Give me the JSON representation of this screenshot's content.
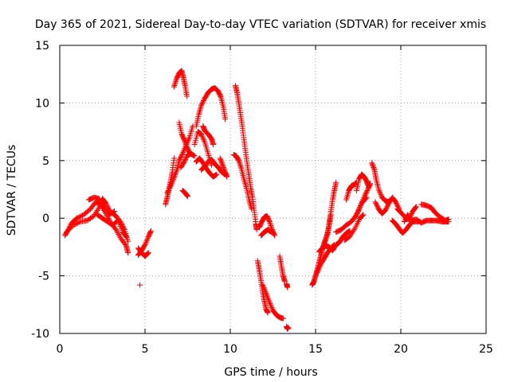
{
  "chart_data": {
    "type": "scatter",
    "title": "Day 365 of 2021, Sidereal Day-to-day VTEC variation (SDTVAR) for receiver xmis",
    "xlabel": "GPS time / hours",
    "ylabel": "SDTVAR / TECUs",
    "xlim": [
      0,
      25
    ],
    "ylim": [
      -10,
      15
    ],
    "xticks": [
      0,
      5,
      10,
      15,
      20,
      25
    ],
    "yticks": [
      -10,
      -5,
      0,
      5,
      10,
      15
    ],
    "xtick_labels": [
      "0",
      "5",
      "10",
      "15",
      "20",
      "25"
    ],
    "ytick_labels": [
      "-10",
      "-5",
      "0",
      "5",
      "10",
      "15"
    ],
    "grid": true,
    "marker": "+",
    "color": "#ff0000",
    "tracks": [
      [
        [
          0.3,
          -1.5
        ],
        [
          0.5,
          -1.0
        ],
        [
          0.7,
          -0.4
        ],
        [
          1.0,
          0.0
        ],
        [
          1.4,
          0.3
        ],
        [
          1.8,
          0.8
        ],
        [
          2.1,
          1.4
        ],
        [
          2.4,
          1.2
        ],
        [
          2.7,
          0.4
        ],
        [
          3.0,
          -0.4
        ],
        [
          3.3,
          -1.0
        ],
        [
          3.6,
          -1.8
        ],
        [
          3.9,
          -2.4
        ],
        [
          4.0,
          -3.0
        ]
      ],
      [
        [
          0.4,
          -1.2
        ],
        [
          0.8,
          -0.6
        ],
        [
          1.2,
          -0.3
        ],
        [
          1.6,
          -0.2
        ],
        [
          2.0,
          0.2
        ],
        [
          2.3,
          0.9
        ],
        [
          2.5,
          1.7
        ],
        [
          2.7,
          1.3
        ],
        [
          3.0,
          0.5
        ],
        [
          3.3,
          0.2
        ],
        [
          3.6,
          -0.4
        ],
        [
          3.8,
          -1.0
        ],
        [
          4.0,
          -2.0
        ]
      ],
      [
        [
          2.2,
          0.3
        ],
        [
          2.5,
          0.0
        ],
        [
          2.8,
          -0.3
        ],
        [
          3.1,
          -0.6
        ],
        [
          3.4,
          -0.2
        ],
        [
          3.7,
          -1.2
        ],
        [
          3.9,
          -1.6
        ]
      ],
      [
        [
          1.7,
          1.6
        ],
        [
          2.0,
          1.8
        ],
        [
          2.3,
          1.7
        ],
        [
          2.6,
          1.0
        ],
        [
          2.9,
          0.3
        ],
        [
          3.2,
          0.6
        ]
      ],
      [
        [
          4.6,
          -3.2
        ],
        [
          4.8,
          -2.8
        ],
        [
          5.0,
          -2.3
        ],
        [
          5.2,
          -1.6
        ],
        [
          5.35,
          -1.1
        ]
      ],
      [
        [
          4.6,
          -2.6
        ],
        [
          4.8,
          -3.0
        ],
        [
          5.0,
          -3.3
        ],
        [
          5.2,
          -3.0
        ]
      ],
      [
        [
          4.7,
          -5.8
        ]
      ],
      [
        [
          6.2,
          1.2
        ],
        [
          6.3,
          1.8
        ],
        [
          6.4,
          2.5
        ],
        [
          6.5,
          3.2
        ],
        [
          6.6,
          4.0
        ],
        [
          6.7,
          5.2
        ]
      ],
      [
        [
          6.3,
          2.2
        ],
        [
          6.5,
          2.8
        ],
        [
          6.7,
          3.5
        ],
        [
          6.9,
          4.3
        ],
        [
          7.0,
          5.0
        ],
        [
          7.2,
          5.6
        ],
        [
          7.4,
          6.3
        ],
        [
          7.6,
          7.0
        ],
        [
          7.8,
          8.0
        ]
      ],
      [
        [
          6.7,
          11.4
        ],
        [
          6.85,
          12.1
        ],
        [
          7.0,
          12.6
        ],
        [
          7.15,
          12.8
        ],
        [
          7.25,
          12.2
        ],
        [
          7.35,
          11.5
        ],
        [
          7.45,
          10.6
        ]
      ],
      [
        [
          7.0,
          8.3
        ],
        [
          7.15,
          7.3
        ],
        [
          7.3,
          6.8
        ],
        [
          7.45,
          6.2
        ],
        [
          7.6,
          5.7
        ]
      ],
      [
        [
          7.2,
          2.4
        ],
        [
          7.35,
          2.2
        ],
        [
          7.5,
          1.9
        ]
      ],
      [
        [
          7.1,
          4.4
        ],
        [
          7.3,
          4.9
        ],
        [
          7.5,
          5.5
        ],
        [
          7.7,
          5.6
        ],
        [
          7.9,
          5.4
        ]
      ],
      [
        [
          7.9,
          6.4
        ],
        [
          8.1,
          7.5
        ],
        [
          8.3,
          7.3
        ],
        [
          8.5,
          6.6
        ],
        [
          8.7,
          5.6
        ],
        [
          8.9,
          4.6
        ]
      ],
      [
        [
          8.0,
          4.9
        ],
        [
          8.2,
          5.2
        ],
        [
          8.4,
          4.8
        ],
        [
          8.6,
          4.3
        ],
        [
          8.8,
          3.9
        ],
        [
          9.0,
          3.6
        ],
        [
          9.2,
          3.8
        ]
      ],
      [
        [
          8.3,
          4.2
        ],
        [
          8.5,
          4.5
        ],
        [
          8.7,
          4.9
        ],
        [
          8.9,
          5.1
        ],
        [
          9.1,
          4.7
        ],
        [
          9.3,
          4.4
        ],
        [
          9.5,
          4.0
        ],
        [
          9.7,
          3.8
        ]
      ],
      [
        [
          8.0,
          8.0
        ],
        [
          8.15,
          9.0
        ],
        [
          8.3,
          9.8
        ],
        [
          8.5,
          10.4
        ],
        [
          8.7,
          10.9
        ],
        [
          8.9,
          11.2
        ],
        [
          9.1,
          11.3
        ],
        [
          9.3,
          11.0
        ],
        [
          9.45,
          10.5
        ],
        [
          9.6,
          9.6
        ],
        [
          9.7,
          8.6
        ]
      ],
      [
        [
          8.4,
          8.0
        ],
        [
          8.5,
          7.6
        ],
        [
          8.7,
          7.3
        ],
        [
          8.9,
          6.9
        ],
        [
          9.0,
          6.4
        ]
      ],
      [
        [
          9.4,
          5.2
        ],
        [
          9.55,
          4.6
        ],
        [
          9.7,
          4.0
        ],
        [
          9.8,
          3.6
        ]
      ],
      [
        [
          10.3,
          11.5
        ],
        [
          10.4,
          10.9
        ],
        [
          10.5,
          10.0
        ],
        [
          10.6,
          9.0
        ],
        [
          10.7,
          8.0
        ],
        [
          10.8,
          6.8
        ],
        [
          10.9,
          5.7
        ],
        [
          11.0,
          4.6
        ],
        [
          11.1,
          3.6
        ],
        [
          11.2,
          2.6
        ],
        [
          11.3,
          1.8
        ],
        [
          11.4,
          0.7
        ],
        [
          11.5,
          -0.5
        ],
        [
          11.55,
          -1.0
        ]
      ],
      [
        [
          10.2,
          5.5
        ],
        [
          10.35,
          5.4
        ],
        [
          10.5,
          5.0
        ],
        [
          10.65,
          4.3
        ],
        [
          10.8,
          3.4
        ],
        [
          10.95,
          2.6
        ],
        [
          11.1,
          1.6
        ],
        [
          11.25,
          0.8
        ]
      ],
      [
        [
          11.7,
          -0.8
        ],
        [
          11.85,
          -0.3
        ],
        [
          12.0,
          0.1
        ],
        [
          12.15,
          0.2
        ],
        [
          12.3,
          -0.3
        ],
        [
          12.45,
          -1.0
        ],
        [
          12.6,
          -1.5
        ]
      ],
      [
        [
          11.8,
          -1.5
        ],
        [
          12.0,
          -1.2
        ],
        [
          12.2,
          -1.0
        ],
        [
          12.4,
          -1.2
        ]
      ],
      [
        [
          11.6,
          -3.7
        ],
        [
          11.7,
          -4.5
        ],
        [
          11.8,
          -5.4
        ],
        [
          11.9,
          -6.4
        ],
        [
          12.0,
          -7.2
        ],
        [
          12.1,
          -7.9
        ],
        [
          12.2,
          -8.2
        ]
      ],
      [
        [
          11.9,
          -5.8
        ],
        [
          12.1,
          -6.5
        ],
        [
          12.3,
          -7.3
        ],
        [
          12.5,
          -8.0
        ],
        [
          12.7,
          -8.4
        ],
        [
          12.9,
          -8.6
        ],
        [
          13.1,
          -8.7
        ]
      ],
      [
        [
          12.9,
          -3.3
        ],
        [
          13.0,
          -4.2
        ],
        [
          13.1,
          -5.0
        ],
        [
          13.2,
          -5.5
        ]
      ],
      [
        [
          13.3,
          -5.7
        ],
        [
          13.35,
          -6.0
        ]
      ],
      [
        [
          13.3,
          -9.4
        ],
        [
          13.35,
          -9.6
        ],
        [
          13.4,
          -9.5
        ]
      ],
      [
        [
          14.8,
          -5.8
        ],
        [
          14.9,
          -5.5
        ],
        [
          15.0,
          -5.0
        ],
        [
          15.1,
          -4.5
        ],
        [
          15.2,
          -3.9
        ],
        [
          15.3,
          -3.3
        ],
        [
          15.4,
          -2.7
        ],
        [
          15.5,
          -2.2
        ],
        [
          15.6,
          -1.8
        ],
        [
          15.7,
          -1.3
        ],
        [
          15.8,
          -0.6
        ],
        [
          15.9,
          0.3
        ]
      ],
      [
        [
          15.1,
          -4.7
        ],
        [
          15.3,
          -4.0
        ],
        [
          15.5,
          -3.5
        ],
        [
          15.7,
          -3.0
        ],
        [
          15.9,
          -2.6
        ],
        [
          16.1,
          -2.3
        ]
      ],
      [
        [
          15.2,
          -2.9
        ],
        [
          15.4,
          -2.6
        ],
        [
          15.6,
          -2.4
        ],
        [
          15.8,
          -2.5
        ],
        [
          16.0,
          -2.8
        ],
        [
          16.2,
          -2.3
        ],
        [
          16.4,
          -2.1
        ],
        [
          16.6,
          -1.6
        ],
        [
          16.8,
          -1.3
        ],
        [
          17.0,
          -1.1
        ]
      ],
      [
        [
          15.7,
          -1.4
        ],
        [
          15.8,
          -0.4
        ],
        [
          15.9,
          0.6
        ],
        [
          16.0,
          1.6
        ],
        [
          16.1,
          2.4
        ],
        [
          16.2,
          3.1
        ]
      ],
      [
        [
          16.2,
          -1.2
        ],
        [
          16.5,
          -1.0
        ],
        [
          16.8,
          -0.6
        ],
        [
          17.1,
          -0.3
        ],
        [
          17.4,
          0.3
        ],
        [
          17.7,
          1.3
        ],
        [
          18.0,
          1.8
        ]
      ],
      [
        [
          16.7,
          -1.9
        ],
        [
          17.0,
          -1.6
        ],
        [
          17.3,
          -0.9
        ],
        [
          17.6,
          0.0
        ],
        [
          17.8,
          0.3
        ]
      ],
      [
        [
          16.8,
          1.6
        ],
        [
          16.95,
          2.4
        ],
        [
          17.1,
          2.8
        ],
        [
          17.25,
          2.9
        ],
        [
          17.4,
          3.1
        ]
      ],
      [
        [
          17.4,
          2.4
        ],
        [
          17.55,
          3.4
        ],
        [
          17.7,
          3.8
        ],
        [
          17.85,
          3.6
        ],
        [
          18.0,
          3.2
        ],
        [
          18.1,
          2.8
        ]
      ],
      [
        [
          17.3,
          0.0
        ],
        [
          17.5,
          0.6
        ],
        [
          17.7,
          1.3
        ],
        [
          17.9,
          2.0
        ],
        [
          18.1,
          2.6
        ],
        [
          18.2,
          3.0
        ]
      ],
      [
        [
          18.3,
          4.8
        ],
        [
          18.45,
          4.2
        ],
        [
          18.55,
          3.4
        ],
        [
          18.7,
          2.5
        ],
        [
          18.9,
          1.8
        ],
        [
          19.1,
          1.5
        ],
        [
          19.3,
          1.4
        ]
      ],
      [
        [
          18.5,
          1.4
        ],
        [
          18.7,
          0.8
        ],
        [
          18.9,
          0.4
        ],
        [
          19.1,
          0.7
        ],
        [
          19.3,
          1.3
        ],
        [
          19.5,
          1.8
        ],
        [
          19.7,
          1.4
        ],
        [
          19.9,
          0.8
        ]
      ],
      [
        [
          19.5,
          -0.2
        ],
        [
          19.7,
          -0.5
        ],
        [
          19.9,
          -0.9
        ],
        [
          20.1,
          -1.3
        ],
        [
          20.3,
          -1.0
        ],
        [
          20.5,
          -0.6
        ],
        [
          20.7,
          -0.3
        ],
        [
          21.0,
          -0.3
        ]
      ],
      [
        [
          19.8,
          0.8
        ],
        [
          20.0,
          0.5
        ],
        [
          20.3,
          0.0
        ],
        [
          20.6,
          -0.2
        ],
        [
          20.9,
          -0.1
        ],
        [
          21.2,
          -0.4
        ],
        [
          21.5,
          -0.2
        ],
        [
          21.8,
          -0.2
        ],
        [
          22.1,
          -0.2
        ],
        [
          22.4,
          -0.3
        ],
        [
          22.7,
          -0.3
        ],
        [
          22.8,
          -0.3
        ]
      ],
      [
        [
          20.2,
          -0.3
        ],
        [
          20.4,
          0.3
        ],
        [
          20.5,
          0.0
        ],
        [
          20.7,
          0.6
        ],
        [
          20.9,
          1.0
        ]
      ],
      [
        [
          21.2,
          1.2
        ],
        [
          21.5,
          1.1
        ],
        [
          21.8,
          0.9
        ],
        [
          22.0,
          0.5
        ],
        [
          22.3,
          0.1
        ],
        [
          22.6,
          -0.2
        ],
        [
          22.8,
          -0.1
        ]
      ]
    ]
  }
}
